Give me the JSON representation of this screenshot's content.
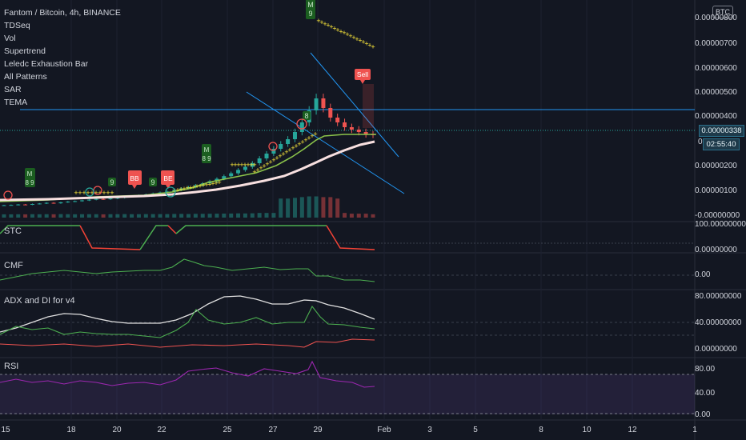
{
  "legend": {
    "symbol": "Fantom / Bitcoin, 4h, BINANCE",
    "indicators": [
      "TDSeq",
      "Vol",
      "Supertrend",
      "Leledc Exhaustion Bar",
      "All Patterns",
      "SAR",
      "TEMA"
    ]
  },
  "currency_badge": "BTC",
  "price_axis": [
    "0.00000800",
    "0.00000700",
    "0.00000600",
    "0.00000500",
    "0.00000400",
    "0.00000200",
    "0.00000100",
    "-0.00000000"
  ],
  "price_axis_partial": "0.",
  "current_price": "0.00000338",
  "countdown": "02:55:40",
  "panes": {
    "stc": {
      "label": "STC",
      "axis": [
        "100.00000000",
        "0.00000000"
      ]
    },
    "cmf": {
      "label": "CMF",
      "axis": [
        "0.00"
      ]
    },
    "adx": {
      "label": "ADX and DI for v4",
      "axis": [
        "80.00000000",
        "40.00000000",
        "0.00000000"
      ]
    },
    "rsi": {
      "label": "RSI",
      "axis": [
        "80.00",
        "40.00",
        "0.00"
      ]
    }
  },
  "x_axis": [
    "15",
    "18",
    "20",
    "22",
    "25",
    "27",
    "29",
    "Feb",
    "3",
    "5",
    "8",
    "10",
    "12",
    "1"
  ],
  "annotations": {
    "sell": "Sell",
    "buy": "BB",
    "bullish_engulfing": "BE",
    "td_top_m": "M",
    "td_top_9": "9",
    "td_8": "8",
    "td_9": "9",
    "td_m": "M",
    "td_89": "8 9"
  },
  "colors": {
    "background": "#131722",
    "up": "#26a69a",
    "down": "#ef5350",
    "tema": "#f8e0e0",
    "supertrend": "#8bc34a",
    "sar": "#ffeb3b",
    "trendline": "#2196f3",
    "rsi": "#9c27b0",
    "stc_up": "#4caf50",
    "stc_down": "#f44336"
  },
  "chart_data": {
    "type": "candlestick",
    "pane": "main price (FTM/BTC, 4h)",
    "x_tick_labels": [
      "15",
      "18",
      "20",
      "22",
      "25",
      "27",
      "29",
      "Feb",
      "3",
      "5",
      "8",
      "10",
      "12",
      "1"
    ],
    "y_tick_labels": [
      "0.00000800",
      "0.00000700",
      "0.00000600",
      "0.00000500",
      "0.00000400",
      "0.00000200",
      "0.00000100",
      "-0.00000000"
    ],
    "close": [
      4.5e-07,
      4.6e-07,
      4.8e-07,
      4.7e-07,
      5e-07,
      5.2e-07,
      5.5e-07,
      5.3e-07,
      5.7e-07,
      6e-07,
      6.2e-07,
      6.5e-07,
      6.8e-07,
      7.1e-07,
      7e-07,
      7.3e-07,
      7.6e-07,
      8e-07,
      8.3e-07,
      8.6e-07,
      9e-07,
      9.4e-07,
      9.8e-07,
      1.02e-06,
      1.08e-06,
      1.15e-06,
      1.2e-06,
      1.28e-06,
      1.36e-06,
      1.45e-06,
      1.55e-06,
      1.66e-06,
      1.78e-06,
      1.92e-06,
      2.05e-06,
      2.2e-06,
      2.4e-06,
      2.6e-06,
      2.8e-06,
      3e-06,
      3.2e-06,
      3.5e-06,
      3.9e-06,
      4.4e-06,
      4.9e-06,
      4.5e-06,
      4.1e-06,
      3.9e-06,
      3.7e-06,
      3.6e-06,
      3.5e-06,
      3.4e-06,
      3.38e-06
    ],
    "current_price": 3.38e-06
  }
}
